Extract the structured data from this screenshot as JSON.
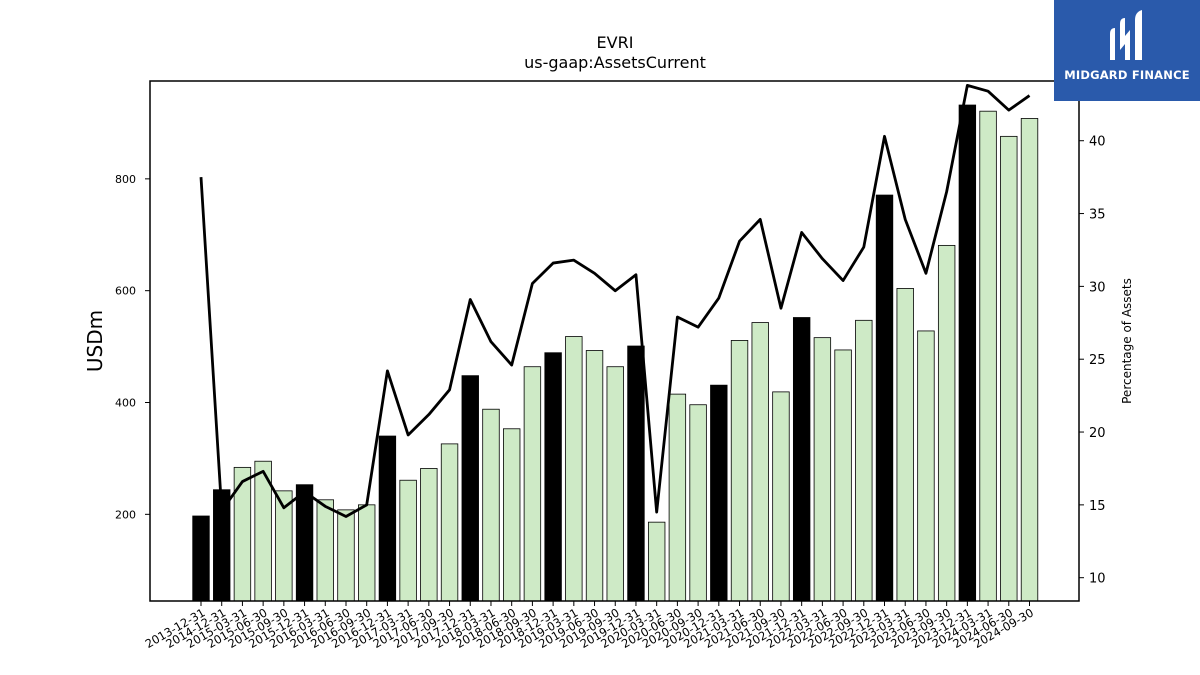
{
  "brand": {
    "name": "MIDGARD FINANCE",
    "color": "#2a5aab"
  },
  "chart_data": {
    "type": "bar",
    "title": "EVRI",
    "subtitle": "us-gaap:AssetsCurrent",
    "ylabel": "USDm",
    "y2label": "Percentage of Assets",
    "ylim": [
      45,
      975
    ],
    "y2lim": [
      8.4,
      44.1
    ],
    "yticks": [
      200,
      400,
      600,
      800
    ],
    "y2ticks": [
      10,
      15,
      20,
      25,
      30,
      35,
      40
    ],
    "grid": false,
    "categories": [
      "2013-12-31",
      "2014-12-31",
      "2015-03-31",
      "2015-06-30",
      "2015-09-30",
      "2015-12-31",
      "2016-03-31",
      "2016-06-30",
      "2016-09-30",
      "2016-12-31",
      "2017-03-31",
      "2017-06-30",
      "2017-09-30",
      "2017-12-31",
      "2018-03-31",
      "2018-06-30",
      "2018-09-30",
      "2018-12-31",
      "2019-03-31",
      "2019-06-30",
      "2019-09-30",
      "2019-12-31",
      "2020-03-31",
      "2020-06-30",
      "2020-09-30",
      "2020-12-31",
      "2021-03-31",
      "2021-06-30",
      "2021-09-30",
      "2021-12-31",
      "2022-03-31",
      "2022-06-30",
      "2022-09-30",
      "2022-12-31",
      "2023-03-31",
      "2023-06-30",
      "2023-09-30",
      "2023-12-31",
      "2024-03-31",
      "2024-06-30",
      "2024-09-30"
    ],
    "series": [
      {
        "type": "bar",
        "axis": "left",
        "values": [
          197,
          244,
          284,
          295,
          242,
          253,
          226,
          208,
          217,
          340,
          261,
          282,
          326,
          448,
          388,
          353,
          464,
          489,
          518,
          493,
          464,
          501,
          186,
          415,
          396,
          431,
          511,
          543,
          419,
          552,
          516,
          494,
          547,
          771,
          604,
          528,
          681,
          932,
          921,
          876,
          908
        ]
      },
      {
        "type": "line",
        "axis": "right",
        "values": [
          37.5,
          14.6,
          16.6,
          17.3,
          14.8,
          15.9,
          14.9,
          14.2,
          15.0,
          24.2,
          19.8,
          21.2,
          22.9,
          29.1,
          26.2,
          24.6,
          30.2,
          31.6,
          31.8,
          30.9,
          29.7,
          30.8,
          14.5,
          27.9,
          27.2,
          29.2,
          33.1,
          34.6,
          28.5,
          33.7,
          31.9,
          30.4,
          32.7,
          40.3,
          34.6,
          30.9,
          36.5,
          43.8,
          43.4,
          42.1,
          43.1
        ]
      }
    ],
    "annual_color": "#000000",
    "quarterly_color": "#ceeac6",
    "line_color": "#000000"
  }
}
